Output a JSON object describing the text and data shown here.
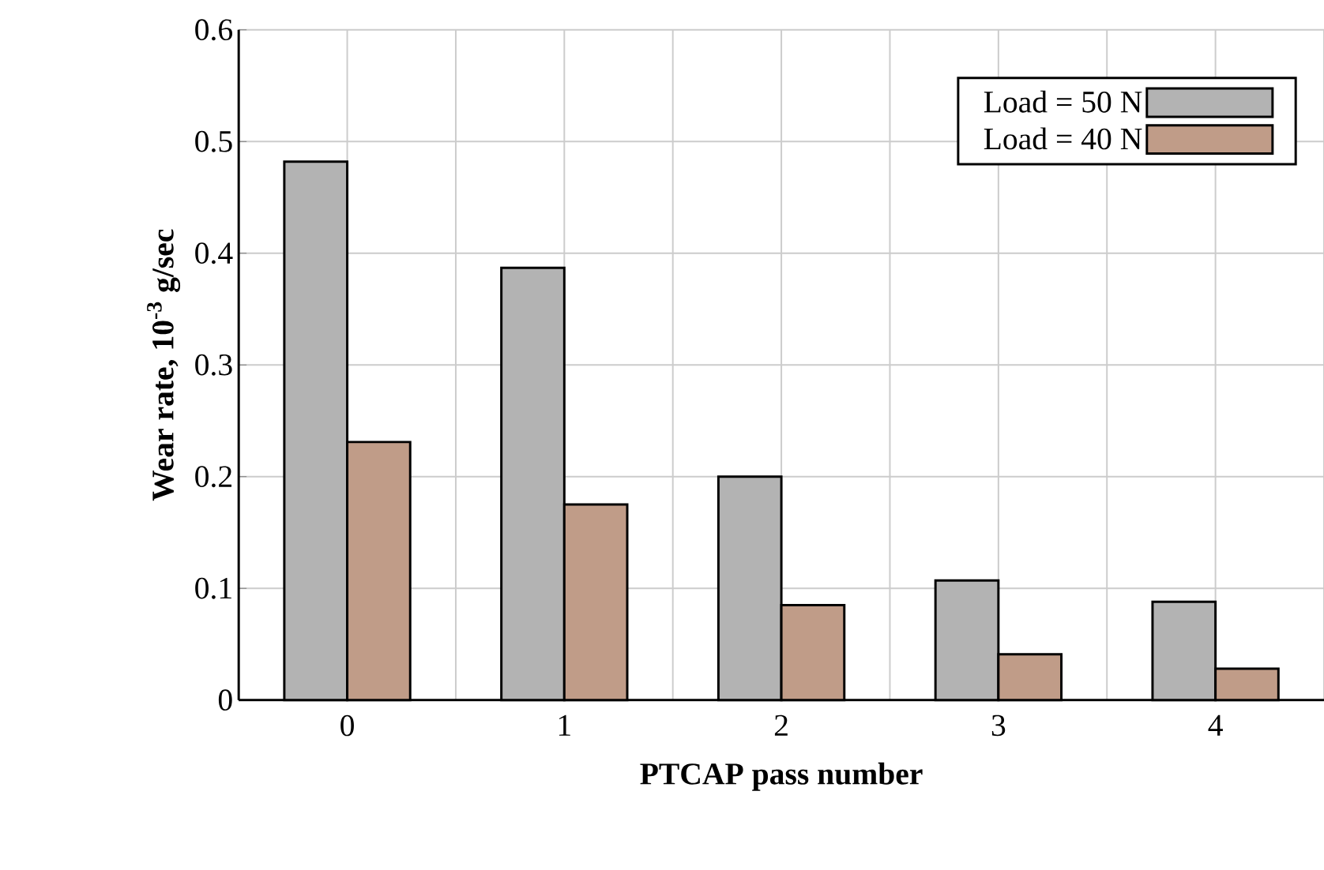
{
  "chart_data": {
    "type": "bar",
    "xlabel": "PTCAP pass number",
    "ylabel": "**Wear rate, 10$^{-3}$ g/sec**",
    "categories": [
      "0",
      "1",
      "2",
      "3",
      "4"
    ],
    "series": [
      {
        "name": "Load  = 50 N",
        "color": "#b3b3b3",
        "values": [
          0.482,
          0.387,
          0.2,
          0.107,
          0.088
        ]
      },
      {
        "name": "Load  = 40 N",
        "color": "#c09c88",
        "values": [
          0.231,
          0.175,
          0.085,
          0.041,
          0.028
        ]
      }
    ],
    "ylim": [
      0,
      0.6
    ],
    "yticks": [
      0,
      0.1,
      0.2,
      0.3,
      0.4,
      0.5,
      0.6
    ],
    "grid": true,
    "legend": "top right"
  }
}
